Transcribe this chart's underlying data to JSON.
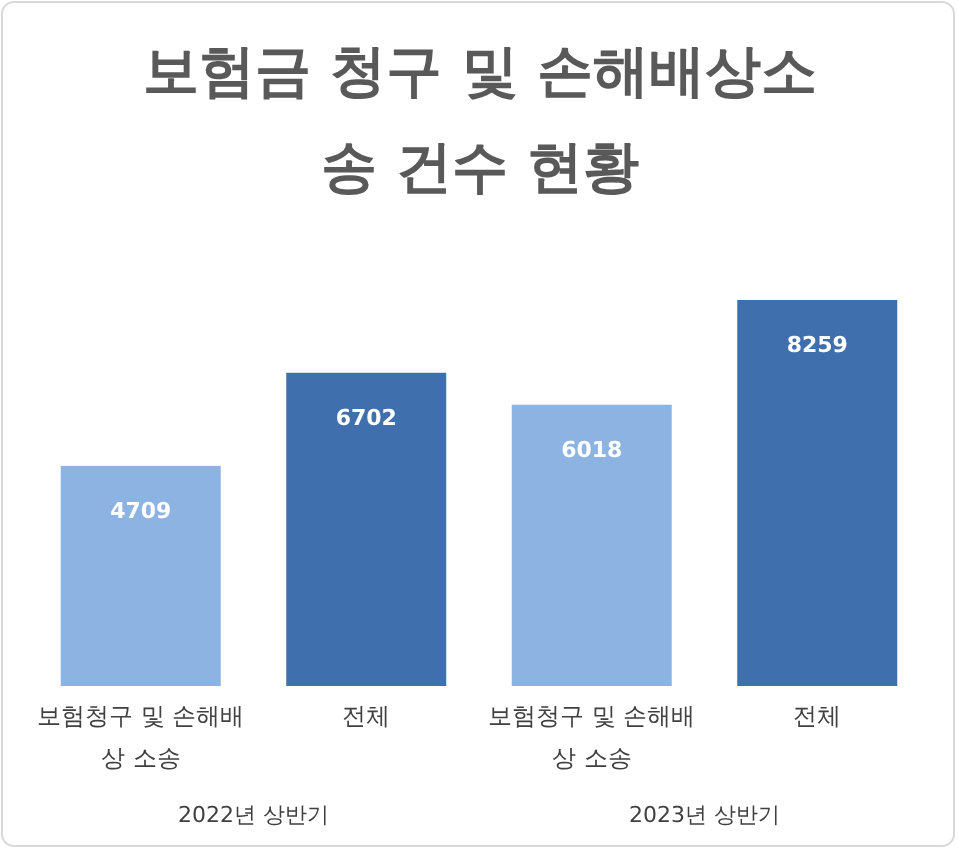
{
  "chart_data": {
    "type": "bar",
    "title": "보험금 청구 및 손해배상소송 건수 현황",
    "categories": [
      "보험청구 및 손해배상 소송",
      "전체",
      "보험청구 및 손해배상 소송",
      "전체"
    ],
    "values": [
      4709,
      6702,
      6018,
      8259
    ],
    "colors": [
      "#8db3e2",
      "#3f6fad",
      "#8db3e2",
      "#3f6fad"
    ],
    "data_labels": true,
    "annotations": [
      "2022년 상반기",
      "2023년 상반기"
    ]
  }
}
